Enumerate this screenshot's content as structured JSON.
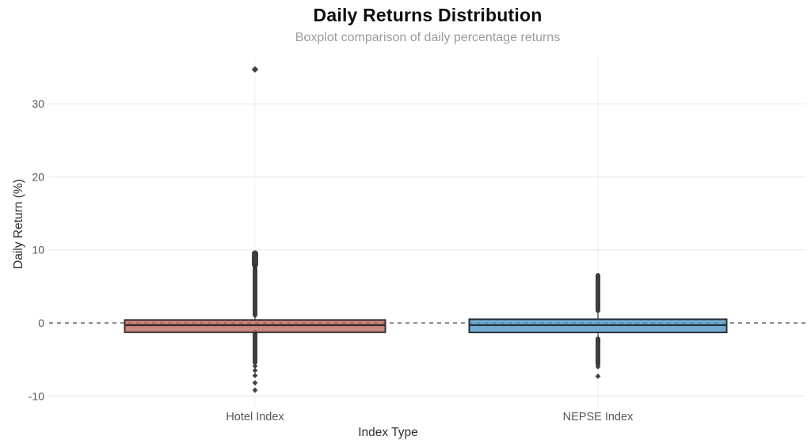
{
  "chart_data": {
    "type": "boxplot",
    "title": "Daily Returns Distribution",
    "subtitle": "Boxplot comparison of daily percentage returns",
    "xlabel": "Index Type",
    "ylabel": "Daily Return (%)",
    "yticks": [
      30,
      20,
      10,
      0,
      -10
    ],
    "ylim": [
      -11.6,
      36.4
    ],
    "zero_reference_line": 0,
    "grid": "horizontal-major, faint vertical at categories",
    "legend": "none",
    "categories": [
      "Hotel Index",
      "NEPSE Index"
    ],
    "series": [
      {
        "name": "Hotel Index",
        "median": -0.3,
        "q1": -1.28,
        "q3": 0.4,
        "whisker_low": -1.6,
        "whisker_high": 1.1,
        "outlier_band_high": [
          1.1,
          7.4
        ],
        "outlier_cluster_high": [
          8.0,
          9.5
        ],
        "outlier_points_high": [
          7.7,
          34.7
        ],
        "outlier_band_low": [
          -1.3,
          -5.4
        ],
        "outlier_points_low": [
          -5.9,
          -6.5,
          -7.2,
          -8.2,
          -9.2
        ],
        "fill": "rgba(188,106,95,0.8)",
        "stroke": "#3a2e2b",
        "median_color": "#2a1f1e"
      },
      {
        "name": "NEPSE Index",
        "median": -0.3,
        "q1": -1.3,
        "q3": 0.5,
        "whisker_low": -2.2,
        "whisker_high": 1.6,
        "outlier_band_high": [
          1.7,
          6.5
        ],
        "outlier_cluster_high": null,
        "outlier_points_high": [],
        "outlier_band_low": [
          -2.2,
          -5.6
        ],
        "outlier_points_low": [
          -6.0,
          -7.3
        ],
        "fill": "rgba(91,155,200,0.85)",
        "stroke": "#24323e",
        "median_color": "#1c2b38"
      }
    ],
    "colors": {
      "title": "#0d0d0d",
      "subtitle": "#9b9b9b",
      "axis_label": "#2e2e2e",
      "tick_label": "#565656",
      "gridline": "#e7e7e7",
      "vertical_gridline": "#efefef",
      "zero_line": "#4a4a4a",
      "outlier": "#2e2e2e",
      "background": "#ffffff"
    }
  }
}
